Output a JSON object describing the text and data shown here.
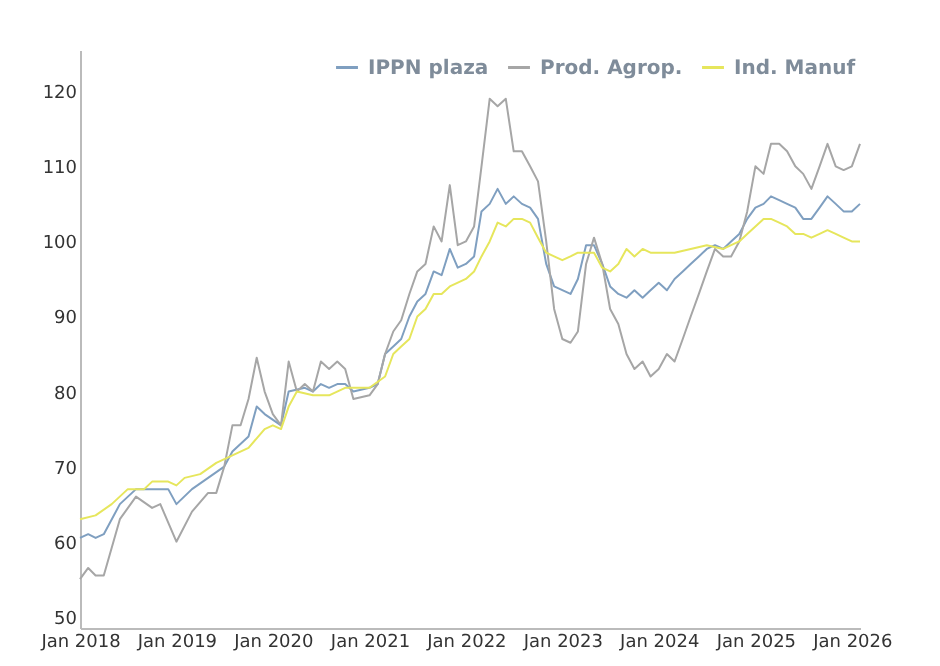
{
  "chart_data": {
    "type": "line",
    "legend": "top right",
    "grid": false,
    "marker": "none",
    "line_style": "solid",
    "ylim": [
      48.5,
      125.5
    ],
    "yticks": [
      50,
      60,
      70,
      80,
      90,
      100,
      110,
      120
    ],
    "xlim": [
      "2018-01",
      "2026-02"
    ],
    "xticks": [
      {
        "value": "2018-01",
        "label": "Jan 2018"
      },
      {
        "value": "2019-01",
        "label": "Jan 2019"
      },
      {
        "value": "2020-01",
        "label": "Jan 2020"
      },
      {
        "value": "2021-01",
        "label": "Jan 2021"
      },
      {
        "value": "2022-01",
        "label": "Jan 2022"
      },
      {
        "value": "2023-01",
        "label": "Jan 2023"
      },
      {
        "value": "2024-01",
        "label": "Jan 2024"
      },
      {
        "value": "2025-01",
        "label": "Jan 2025"
      },
      {
        "value": "2026-01",
        "label": "Jan 2026"
      }
    ],
    "series": [
      {
        "name": "IPPN plaza",
        "color": "#7f9fc0",
        "x": [
          "2018-01",
          "2018-02",
          "2018-03",
          "2018-04",
          "2018-06",
          "2018-08",
          "2018-10",
          "2018-12",
          "2019-01",
          "2019-03",
          "2019-05",
          "2019-07",
          "2019-08",
          "2019-10",
          "2019-11",
          "2019-12",
          "2020-02",
          "2020-03",
          "2020-05",
          "2020-06",
          "2020-07",
          "2020-08",
          "2020-09",
          "2020-10",
          "2020-11",
          "2021-01",
          "2021-02",
          "2021-03",
          "2021-04",
          "2021-05",
          "2021-06",
          "2021-07",
          "2021-08",
          "2021-09",
          "2021-10",
          "2021-11",
          "2021-12",
          "2022-01",
          "2022-02",
          "2022-03",
          "2022-04",
          "2022-05",
          "2022-06",
          "2022-07",
          "2022-08",
          "2022-09",
          "2022-10",
          "2022-11",
          "2022-12",
          "2023-01",
          "2023-02",
          "2023-03",
          "2023-04",
          "2023-05",
          "2023-06",
          "2023-07",
          "2023-08",
          "2023-09",
          "2023-10",
          "2023-11",
          "2023-12",
          "2024-01",
          "2024-02",
          "2024-03",
          "2024-04",
          "2024-05",
          "2024-06",
          "2024-07",
          "2024-08",
          "2024-09",
          "2024-10",
          "2024-11",
          "2024-12",
          "2025-01",
          "2025-02",
          "2025-03",
          "2025-04",
          "2025-05",
          "2025-06",
          "2025-07",
          "2025-08",
          "2025-09",
          "2025-10",
          "2025-11",
          "2025-12",
          "2026-01",
          "2026-02"
        ],
        "values": [
          60.5,
          61,
          60.5,
          61,
          65,
          67,
          67,
          67,
          65,
          67,
          68.5,
          70,
          72,
          74,
          78,
          77,
          75.5,
          80,
          80.5,
          80,
          81,
          80.5,
          81,
          81,
          80,
          80.5,
          81,
          85,
          86,
          87,
          90,
          92,
          93,
          96,
          95.5,
          99,
          96.5,
          97,
          98,
          104,
          105,
          107,
          105,
          106,
          105,
          104.5,
          103,
          97,
          94,
          93.5,
          93,
          95,
          99.5,
          99.5,
          97,
          94,
          93,
          92.5,
          93.5,
          92.5,
          93.5,
          94.5,
          93.5,
          95,
          96,
          97,
          98,
          99,
          99.5,
          99,
          100,
          101,
          103,
          104.5,
          105,
          106,
          105.5,
          105,
          104.5,
          103,
          103,
          104.5,
          106,
          105,
          104,
          104,
          105
        ]
      },
      {
        "name": "Prod. Agrop.",
        "color": "#a6a6a6",
        "x": [
          "2018-01",
          "2018-02",
          "2018-03",
          "2018-04",
          "2018-06",
          "2018-08",
          "2018-10",
          "2018-11",
          "2019-01",
          "2019-03",
          "2019-05",
          "2019-06",
          "2019-07",
          "2019-08",
          "2019-09",
          "2019-10",
          "2019-11",
          "2019-12",
          "2020-01",
          "2020-02",
          "2020-03",
          "2020-04",
          "2020-05",
          "2020-06",
          "2020-07",
          "2020-08",
          "2020-09",
          "2020-10",
          "2020-11",
          "2021-01",
          "2021-02",
          "2021-03",
          "2021-04",
          "2021-05",
          "2021-06",
          "2021-07",
          "2021-08",
          "2021-09",
          "2021-10",
          "2021-11",
          "2021-12",
          "2022-01",
          "2022-02",
          "2022-03",
          "2022-04",
          "2022-05",
          "2022-06",
          "2022-07",
          "2022-08",
          "2022-09",
          "2022-10",
          "2022-11",
          "2022-12",
          "2023-01",
          "2023-02",
          "2023-03",
          "2023-04",
          "2023-05",
          "2023-06",
          "2023-07",
          "2023-08",
          "2023-09",
          "2023-10",
          "2023-11",
          "2023-12",
          "2024-01",
          "2024-02",
          "2024-03",
          "2024-04",
          "2024-05",
          "2024-06",
          "2024-07",
          "2024-08",
          "2024-09",
          "2024-10",
          "2024-11",
          "2024-12",
          "2025-01",
          "2025-02",
          "2025-03",
          "2025-04",
          "2025-05",
          "2025-06",
          "2025-07",
          "2025-08",
          "2025-09",
          "2025-10",
          "2025-11",
          "2025-12",
          "2026-01",
          "2026-02"
        ],
        "values": [
          55,
          56.5,
          55.5,
          55.5,
          63,
          66,
          64.5,
          65,
          60,
          64,
          66.5,
          66.5,
          70,
          75.5,
          75.5,
          79,
          84.5,
          80,
          77,
          75.5,
          84,
          80,
          81,
          80,
          84,
          83,
          84,
          83,
          79,
          79.5,
          81,
          85,
          88,
          89.5,
          93,
          96,
          97,
          102,
          100,
          107.5,
          99.5,
          100,
          102,
          110,
          119,
          118,
          119,
          112,
          112,
          110,
          108,
          100,
          91,
          87,
          86.5,
          88,
          97,
          100.5,
          97,
          91,
          89,
          85,
          83,
          84,
          82,
          83,
          85,
          84,
          87,
          90,
          93,
          96,
          99,
          98,
          98,
          100,
          104,
          110,
          109,
          113,
          113,
          112,
          110,
          109,
          107,
          110,
          113,
          110,
          109.5,
          110,
          113
        ]
      },
      {
        "name": "Ind. Manuf",
        "color": "#e6e65c",
        "x": [
          "2018-01",
          "2018-03",
          "2018-05",
          "2018-07",
          "2018-09",
          "2018-10",
          "2018-12",
          "2019-01",
          "2019-02",
          "2019-04",
          "2019-06",
          "2019-08",
          "2019-10",
          "2019-12",
          "2020-01",
          "2020-02",
          "2020-03",
          "2020-04",
          "2020-06",
          "2020-08",
          "2020-10",
          "2021-01",
          "2021-03",
          "2021-04",
          "2021-05",
          "2021-06",
          "2021-07",
          "2021-08",
          "2021-09",
          "2021-10",
          "2021-11",
          "2022-01",
          "2022-02",
          "2022-03",
          "2022-04",
          "2022-05",
          "2022-06",
          "2022-07",
          "2022-08",
          "2022-09",
          "2022-10",
          "2022-11",
          "2022-12",
          "2023-01",
          "2023-02",
          "2023-03",
          "2023-04",
          "2023-05",
          "2023-06",
          "2023-07",
          "2023-08",
          "2023-09",
          "2023-10",
          "2023-11",
          "2023-12",
          "2024-01",
          "2024-03",
          "2024-05",
          "2024-07",
          "2024-09",
          "2024-10",
          "2024-11",
          "2024-12",
          "2025-01",
          "2025-02",
          "2025-03",
          "2025-04",
          "2025-05",
          "2025-06",
          "2025-07",
          "2025-08",
          "2025-09",
          "2025-10",
          "2025-11",
          "2025-12",
          "2026-01",
          "2026-02"
        ],
        "values": [
          63,
          63.5,
          65,
          67,
          67,
          68,
          68,
          67.5,
          68.5,
          69,
          70.5,
          71.5,
          72.5,
          75,
          75.5,
          75,
          78,
          80,
          79.5,
          79.5,
          80.5,
          80.5,
          82,
          85,
          86,
          87,
          90,
          91,
          93,
          93,
          94,
          95,
          96,
          98,
          100,
          102.5,
          102,
          103,
          103,
          102.5,
          100.5,
          98.5,
          98,
          97.5,
          98,
          98.5,
          98.5,
          98.5,
          96.5,
          96,
          97,
          99,
          98,
          99,
          98.5,
          98.5,
          98.5,
          99,
          99.5,
          99,
          99.5,
          100,
          101,
          102,
          103,
          103,
          102.5,
          102,
          101,
          101,
          100.5,
          101,
          101.5,
          101,
          100.5,
          100,
          100
        ]
      }
    ]
  }
}
